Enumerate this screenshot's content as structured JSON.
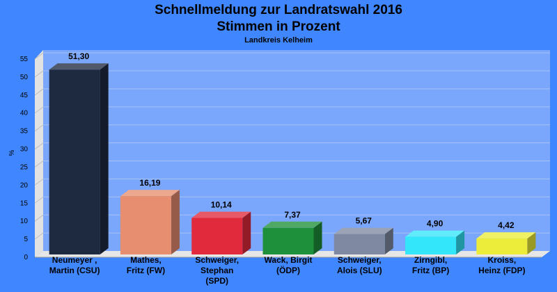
{
  "chart_data": {
    "type": "bar",
    "title": "Schnellmeldung zur Landratswahl 2016",
    "subtitle": "Stimmen in Prozent",
    "subsubtitle": "Landkreis Kelheim",
    "ylabel": "%",
    "ylim": [
      0,
      55
    ],
    "yticks": [
      0,
      5,
      10,
      15,
      20,
      25,
      30,
      35,
      40,
      45,
      50,
      55
    ],
    "grid": true,
    "categories": [
      [
        "Neumeyer ,",
        "Martin (CSU)"
      ],
      [
        "Mathes,",
        "Fritz (FW)"
      ],
      [
        "Schweiger,",
        "Stephan",
        "(SPD)"
      ],
      [
        "Wack, Birgit",
        "(ÖDP)"
      ],
      [
        "Schweiger,",
        "Alois (SLU)"
      ],
      [
        "Zirngibl,",
        "Fritz (BP)"
      ],
      [
        "Kroiss,",
        "Heinz (FDP)"
      ]
    ],
    "values": [
      51.3,
      16.19,
      10.14,
      7.37,
      5.67,
      4.9,
      4.42
    ],
    "value_labels": [
      "51,30",
      "16,19",
      "10,14",
      "7,37",
      "5,67",
      "4,90",
      "4,42"
    ],
    "colors": [
      "#1e2a40",
      "#e78e70",
      "#e12a3c",
      "#1e8f3a",
      "#7f8aa2",
      "#33e6fa",
      "#ecec3a"
    ]
  }
}
